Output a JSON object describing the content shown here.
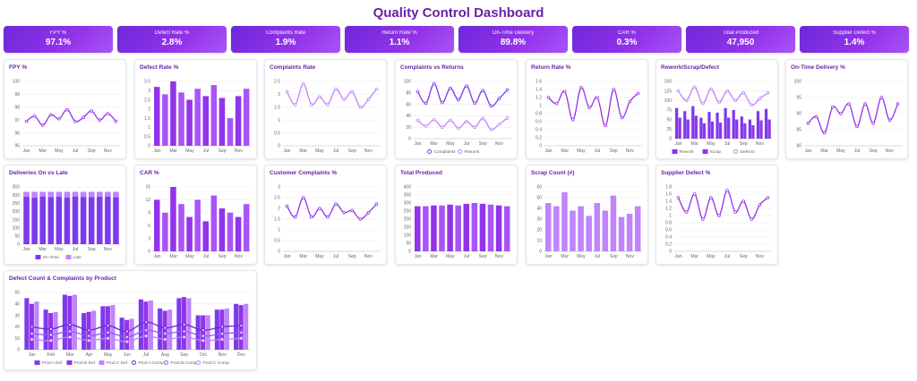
{
  "title": "Quality Control Dashboard",
  "colors": {
    "primary": "#7c3aed",
    "secondary": "#9333ea",
    "tertiary": "#c084fc",
    "title": "#6b21a8"
  },
  "kpis": [
    {
      "label": "FPY %",
      "value": "97.1%"
    },
    {
      "label": "Defect Rate %",
      "value": "2.8%"
    },
    {
      "label": "Complaints Rate",
      "value": "1.9%"
    },
    {
      "label": "Return Rate %",
      "value": "1.1%"
    },
    {
      "label": "On-Time Delivery",
      "value": "89.8%"
    },
    {
      "label": "CAR %",
      "value": "0.3%"
    },
    {
      "label": "Total Produced",
      "value": "47,950"
    },
    {
      "label": "Supplier Defect %",
      "value": "1.4%"
    }
  ],
  "chart_data": [
    {
      "id": "fpy",
      "title": "FPY %",
      "type": "line",
      "ylim": [
        95,
        100
      ],
      "yticks": [
        95,
        96,
        97,
        98,
        99,
        100
      ],
      "categories": [
        "Jan",
        "Feb",
        "Mar",
        "Apr",
        "May",
        "Jun",
        "Jul",
        "Aug",
        "Sep",
        "Oct",
        "Nov",
        "Dec"
      ],
      "series": [
        {
          "values": [
            96.9,
            97.3,
            96.6,
            97.4,
            97.1,
            97.8,
            96.9,
            97.2,
            97.7,
            97.0,
            97.5,
            96.9
          ]
        }
      ]
    },
    {
      "id": "defect",
      "title": "Defect Rate %",
      "type": "bar",
      "ylim": [
        0,
        3.5
      ],
      "yticks": [
        0,
        0.5,
        1,
        1.5,
        2,
        2.5,
        3,
        3.5
      ],
      "categories": [
        "Jan",
        "Feb",
        "Mar",
        "Apr",
        "May",
        "Jun",
        "Jul",
        "Aug",
        "Sep",
        "Oct",
        "Nov",
        "Dec"
      ],
      "series": [
        {
          "values": [
            3.2,
            2.8,
            3.5,
            2.9,
            2.5,
            3.1,
            2.7,
            3.3,
            2.6,
            1.5,
            2.7,
            3.1
          ]
        }
      ]
    },
    {
      "id": "complaints",
      "title": "Complaints Rate",
      "type": "line",
      "ylim": [
        0,
        2.5
      ],
      "yticks": [
        0,
        0.5,
        1,
        1.5,
        2,
        2.5
      ],
      "categories": [
        "Jan",
        "Feb",
        "Mar",
        "Apr",
        "May",
        "Jun",
        "Jul",
        "Aug",
        "Sep",
        "Oct",
        "Nov",
        "Dec"
      ],
      "series": [
        {
          "values": [
            2.1,
            1.6,
            2.4,
            1.6,
            1.9,
            1.6,
            2.2,
            1.8,
            2.1,
            1.5,
            1.8,
            2.2
          ],
          "color": "#c084fc"
        }
      ]
    },
    {
      "id": "compret",
      "title": "Complaints vs Returns",
      "type": "line",
      "ylim": [
        0,
        100
      ],
      "yticks": [
        0,
        20,
        40,
        60,
        80,
        100
      ],
      "categories": [
        "Jan",
        "Feb",
        "Mar",
        "Apr",
        "May",
        "Jun",
        "Jul",
        "Aug",
        "Sep",
        "Oct",
        "Nov",
        "Dec"
      ],
      "series": [
        {
          "name": "Complaints",
          "values": [
            82,
            62,
            96,
            63,
            88,
            68,
            92,
            62,
            84,
            57,
            70,
            85
          ],
          "color": "#7c3aed"
        },
        {
          "name": "Returns",
          "values": [
            32,
            22,
            33,
            20,
            32,
            18,
            30,
            20,
            35,
            16,
            25,
            36
          ],
          "color": "#c084fc"
        }
      ]
    },
    {
      "id": "return",
      "title": "Return Rate %",
      "type": "line",
      "ylim": [
        0,
        1.6
      ],
      "yticks": [
        0,
        0.2,
        0.4,
        0.6,
        0.8,
        1,
        1.2,
        1.4,
        1.6
      ],
      "categories": [
        "Jan",
        "Feb",
        "Mar",
        "Apr",
        "May",
        "Jun",
        "Jul",
        "Aug",
        "Sep",
        "Oct",
        "Nov",
        "Dec"
      ],
      "series": [
        {
          "values": [
            1.2,
            1.05,
            1.35,
            0.65,
            1.45,
            0.95,
            1.2,
            0.5,
            1.4,
            0.7,
            1.1,
            1.3
          ]
        }
      ]
    },
    {
      "id": "rework",
      "title": "Rework/Scrap/Defect",
      "type": "bar",
      "ylim": [
        0,
        150
      ],
      "yticks": [
        0,
        25,
        50,
        75,
        100,
        125,
        150
      ],
      "categories": [
        "Jan",
        "Feb",
        "Mar",
        "Apr",
        "May",
        "Jun",
        "Jul",
        "Aug",
        "Sep",
        "Oct",
        "Nov",
        "Dec"
      ],
      "series": [
        {
          "name": "Rework",
          "values": [
            80,
            72,
            85,
            55,
            70,
            68,
            80,
            75,
            58,
            50,
            72,
            78
          ],
          "color": "#7c3aed"
        },
        {
          "name": "Scrap",
          "values": [
            55,
            50,
            60,
            40,
            45,
            42,
            55,
            50,
            40,
            35,
            48,
            50
          ],
          "color": "#9333ea"
        },
        {
          "name": "Defects",
          "values": [
            125,
            100,
            135,
            92,
            130,
            95,
            125,
            100,
            120,
            88,
            105,
            120
          ],
          "color": "#c084fc",
          "kind": "line"
        }
      ]
    },
    {
      "id": "ontime",
      "title": "On-Time Delivery %",
      "type": "line",
      "ylim": [
        80,
        100
      ],
      "yticks": [
        80,
        85,
        90,
        95,
        100
      ],
      "categories": [
        "Jan",
        "Feb",
        "Mar",
        "Apr",
        "May",
        "Jun",
        "Jul",
        "Aug",
        "Sep",
        "Oct",
        "Nov",
        "Dec"
      ],
      "series": [
        {
          "values": [
            87,
            89,
            84,
            92,
            90,
            93,
            86,
            93,
            87,
            95,
            88,
            93
          ]
        }
      ]
    },
    {
      "id": "deliv",
      "title": "Deliveries On vs Late",
      "type": "bar",
      "ylim": [
        0,
        350
      ],
      "yticks": [
        0,
        50,
        100,
        150,
        200,
        250,
        300,
        350
      ],
      "categories": [
        "Jan",
        "Feb",
        "Mar",
        "Apr",
        "May",
        "Jun",
        "Jul",
        "Aug",
        "Sep",
        "Oct",
        "Nov",
        "Dec"
      ],
      "series": [
        {
          "name": "On-Time",
          "values": [
            290,
            285,
            292,
            288,
            290,
            286,
            292,
            289,
            287,
            291,
            290,
            288
          ],
          "color": "#7c3aed"
        },
        {
          "name": "Late",
          "values": [
            30,
            35,
            28,
            32,
            30,
            34,
            28,
            31,
            33,
            29,
            30,
            32
          ],
          "color": "#c084fc"
        }
      ]
    },
    {
      "id": "car",
      "title": "CAR %",
      "type": "bar",
      "ylim": [
        0,
        15
      ],
      "yticks": [
        0,
        3,
        6,
        9,
        12,
        15
      ],
      "categories": [
        "Jan",
        "Feb",
        "Mar",
        "Apr",
        "May",
        "Jun",
        "Jul",
        "Aug",
        "Sep",
        "Oct",
        "Nov",
        "Dec"
      ],
      "series": [
        {
          "values": [
            12,
            9,
            15,
            11,
            8,
            12,
            7,
            13,
            10,
            9,
            8,
            11
          ]
        }
      ]
    },
    {
      "id": "custcomp",
      "title": "Customer Complaints %",
      "type": "line",
      "ylim": [
        0,
        3
      ],
      "yticks": [
        0,
        0.5,
        1,
        1.5,
        2,
        2.5,
        3
      ],
      "categories": [
        "Jan",
        "Feb",
        "Mar",
        "Apr",
        "May",
        "Jun",
        "Jul",
        "Aug",
        "Sep",
        "Oct",
        "Nov",
        "Dec"
      ],
      "series": [
        {
          "values": [
            2.1,
            1.6,
            2.5,
            1.6,
            2.0,
            1.6,
            2.2,
            1.8,
            1.9,
            1.5,
            1.8,
            2.2
          ]
        }
      ]
    },
    {
      "id": "totprod",
      "title": "Total Produced",
      "type": "bar",
      "ylim": [
        0,
        400
      ],
      "yticks": [
        0,
        50,
        100,
        150,
        200,
        250,
        300,
        350,
        400
      ],
      "categories": [
        "Jan",
        "Feb",
        "Mar",
        "Apr",
        "May",
        "Jun",
        "Jul",
        "Aug",
        "Sep",
        "Oct",
        "Nov",
        "Dec"
      ],
      "series": [
        {
          "values": [
            280,
            280,
            285,
            285,
            290,
            285,
            295,
            300,
            295,
            290,
            285,
            280
          ]
        }
      ]
    },
    {
      "id": "scrap",
      "title": "Scrap Count (#)",
      "type": "bar",
      "ylim": [
        0,
        60
      ],
      "yticks": [
        0,
        10,
        20,
        30,
        40,
        50,
        60
      ],
      "categories": [
        "Jan",
        "Feb",
        "Mar",
        "Apr",
        "May",
        "Jun",
        "Jul",
        "Aug",
        "Sep",
        "Oct",
        "Nov",
        "Dec"
      ],
      "series": [
        {
          "values": [
            45,
            42,
            55,
            38,
            42,
            33,
            45,
            38,
            52,
            32,
            35,
            42
          ],
          "color": "#c084fc"
        }
      ]
    },
    {
      "id": "supplier",
      "title": "Supplier Defect %",
      "type": "line",
      "ylim": [
        0,
        1.8
      ],
      "yticks": [
        0,
        0.2,
        0.4,
        0.6,
        0.8,
        1,
        1.2,
        1.4,
        1.6,
        1.8
      ],
      "categories": [
        "Jan",
        "Feb",
        "Mar",
        "Apr",
        "May",
        "Jun",
        "Jul",
        "Aug",
        "Sep",
        "Oct",
        "Nov",
        "Dec"
      ],
      "series": [
        {
          "values": [
            1.5,
            1.1,
            1.6,
            0.9,
            1.5,
            1.0,
            1.7,
            1.1,
            1.4,
            0.9,
            1.3,
            1.5
          ]
        }
      ]
    },
    {
      "id": "product",
      "title": "Defect Count & Complaints by Product",
      "type": "bar",
      "ylim": [
        0,
        50
      ],
      "yticks": [
        0,
        10,
        20,
        30,
        40,
        50
      ],
      "categories": [
        "Jan",
        "Feb",
        "Mar",
        "Apr",
        "May",
        "Jun",
        "Jul",
        "Aug",
        "Sep",
        "Oct",
        "Nov",
        "Dec"
      ],
      "series": [
        {
          "name": "Prod A Def",
          "values": [
            45,
            35,
            48,
            32,
            38,
            28,
            44,
            36,
            45,
            30,
            35,
            40
          ],
          "color": "#7c3aed"
        },
        {
          "name": "Prod B Def",
          "values": [
            40,
            32,
            47,
            33,
            38,
            26,
            42,
            34,
            46,
            30,
            35,
            39
          ],
          "color": "#9333ea"
        },
        {
          "name": "Prod C Def",
          "values": [
            42,
            33,
            48,
            34,
            39,
            27,
            43,
            35,
            45,
            30,
            36,
            40
          ],
          "color": "#c084fc"
        },
        {
          "name": "Prod A Comp",
          "values": [
            20,
            18,
            22,
            17,
            21,
            16,
            24,
            19,
            22,
            17,
            20,
            21
          ],
          "color": "#6d28d9",
          "kind": "line"
        },
        {
          "name": "Prod B Comp",
          "values": [
            14,
            13,
            16,
            12,
            15,
            11,
            17,
            14,
            16,
            12,
            14,
            15
          ],
          "color": "#8b5cf6",
          "kind": "line"
        },
        {
          "name": "Prod C Comp",
          "values": [
            9,
            8,
            11,
            8,
            10,
            7,
            12,
            9,
            11,
            8,
            9,
            10
          ],
          "color": "#c084fc",
          "kind": "line"
        }
      ]
    }
  ]
}
